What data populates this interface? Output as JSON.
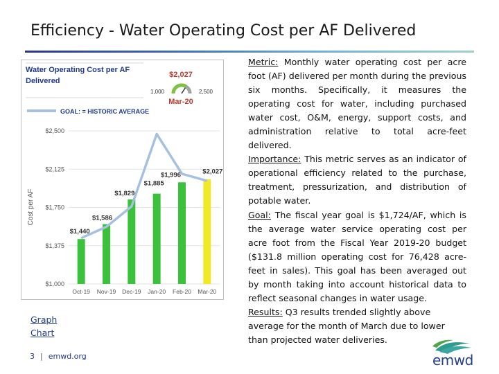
{
  "slide": {
    "title": "Efficiency - Water Operating Cost per AF Delivered",
    "page_number": "3",
    "separator": "|",
    "site": "emwd.org",
    "links": [
      "Graph",
      "Chart"
    ],
    "logo_text": "emwd"
  },
  "body": {
    "metric_label": "Metric:",
    "metric_text": " Monthly water operating cost per acre foot (AF) delivered per month during the previous six months. Specifically, it measures the operating cost for water, including purchased water cost, O&M, energy, support costs, and administration relative to total acre-feet delivered.",
    "importance_label": "Importance:",
    "importance_text": " This metric serves as an indicator of operational efficiency related to the purchase, treatment, pressurization, and distribution of potable water.",
    "goal_label": "Goal:",
    "goal_text": " The fiscal year goal is $1,724/AF, which is the average water service operating cost per acre foot from the Fiscal Year 2019-20 budget ($131.8 million operating cost for 76,428 acre-feet in sales). This goal has been averaged out by month taking into account historical data to reflect seasonal changes in water usage.",
    "results_label": "Results:",
    "results_text": " Q3 results trended slightly above average for the month of March due to lower than projected water deliveries."
  },
  "colors": {
    "bar": "#3cc13c",
    "bar_highlight": "#f2e926",
    "goal_line": "#a6c1e0",
    "title_text": "#1f3b8a",
    "gauge_value": "#c0392b"
  },
  "chart_data": {
    "type": "bar",
    "title": "Water Operating Cost per AF Delivered",
    "ylabel": "Cost per AF",
    "categories": [
      "Oct-19",
      "Nov-19",
      "Dec-19",
      "Jan-20",
      "Feb-20",
      "Mar-20"
    ],
    "series": [
      {
        "name": "Cost per AF",
        "values": [
          1440,
          1586,
          1829,
          1885,
          1996,
          2027
        ]
      }
    ],
    "data_labels": [
      "$1,440",
      "$1,586",
      "$1,829",
      "$1,885",
      "$1,996",
      "$2,027"
    ],
    "goal_series": {
      "name": "GOAL: = HISTORIC AVERAGE",
      "values": [
        1450,
        1560,
        1760,
        2470,
        2080,
        2010
      ]
    },
    "ylim": [
      1000,
      2500
    ],
    "yticks": [
      1000,
      1375,
      1750,
      2125,
      2500
    ],
    "ytick_labels": [
      "$1,000",
      "$1,375",
      "$1,750",
      "$2,125",
      "$2,500"
    ],
    "legend": "GOAL: = HISTORIC AVERAGE",
    "gauge": {
      "value_label": "$2,027",
      "min_label": "1,000",
      "max_label": "2,500",
      "period": "Mar-20",
      "value": 2027,
      "min": 1000,
      "max": 2500
    },
    "highlight_index": 5
  }
}
